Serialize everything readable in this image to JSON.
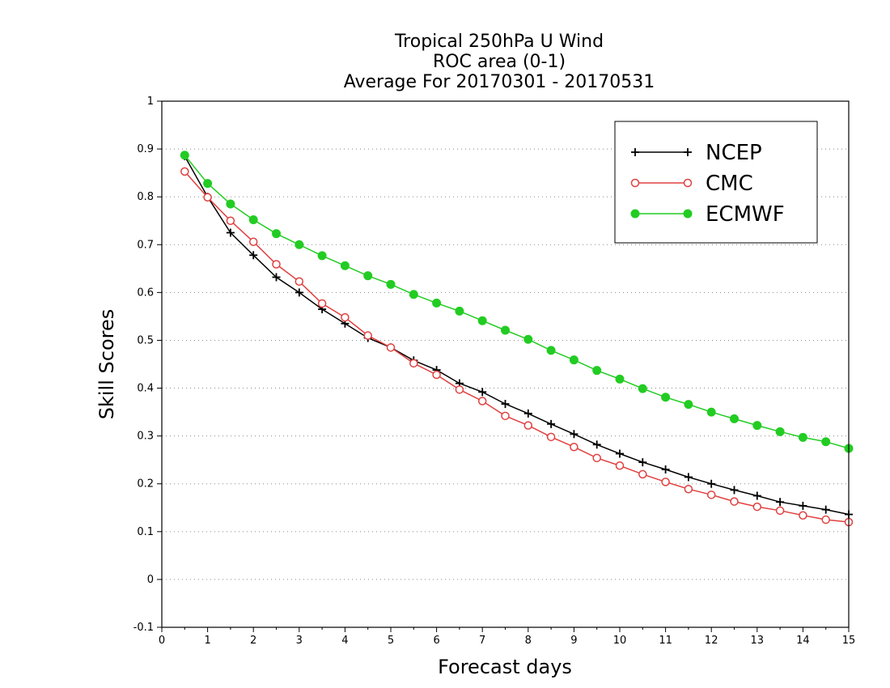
{
  "chart_data": {
    "type": "line",
    "title_lines": [
      "Tropical 250hPa U Wind",
      "ROC area (0-1)",
      "Average For 20170301 - 20170531"
    ],
    "xlabel": "Forecast days",
    "ylabel": "Skill Scores",
    "xlim": [
      0,
      15
    ],
    "ylim": [
      -0.1,
      1
    ],
    "x_ticks": [
      "0",
      "1",
      "2",
      "3",
      "4",
      "5",
      "6",
      "7",
      "8",
      "9",
      "10",
      "11",
      "12",
      "13",
      "14",
      "15"
    ],
    "y_ticks": [
      "-0.1",
      "0",
      "0.1",
      "0.2",
      "0.3",
      "0.4",
      "0.5",
      "0.6",
      "0.7",
      "0.8",
      "0.9",
      "1"
    ],
    "grid": "horizontal dotted",
    "legend_position": "top-right",
    "x": [
      0.5,
      1.0,
      1.5,
      2.0,
      2.5,
      3.0,
      3.5,
      4.0,
      4.5,
      5.0,
      5.5,
      6.0,
      6.5,
      7.0,
      7.5,
      8.0,
      8.5,
      9.0,
      9.5,
      10.0,
      10.5,
      11.0,
      11.5,
      12.0,
      12.5,
      13.0,
      13.5,
      14.0,
      14.5,
      15.0
    ],
    "series": [
      {
        "name": "NCEP",
        "color": "#000000",
        "marker": "plus",
        "values": [
          0.885,
          0.8,
          0.725,
          0.678,
          0.632,
          0.6,
          0.565,
          0.535,
          0.505,
          0.485,
          0.458,
          0.438,
          0.41,
          0.392,
          0.367,
          0.347,
          0.325,
          0.304,
          0.282,
          0.263,
          0.245,
          0.23,
          0.214,
          0.2,
          0.187,
          0.175,
          0.162,
          0.154,
          0.146,
          0.136
        ]
      },
      {
        "name": "CMC",
        "color": "#e04040",
        "marker": "open-circle",
        "values": [
          0.853,
          0.799,
          0.75,
          0.706,
          0.659,
          0.623,
          0.577,
          0.548,
          0.51,
          0.485,
          0.452,
          0.428,
          0.397,
          0.373,
          0.342,
          0.322,
          0.298,
          0.277,
          0.254,
          0.238,
          0.22,
          0.204,
          0.189,
          0.177,
          0.163,
          0.152,
          0.144,
          0.134,
          0.125,
          0.12
        ]
      },
      {
        "name": "ECMWF",
        "color": "#22cc22",
        "marker": "filled-circle",
        "values": [
          0.887,
          0.828,
          0.785,
          0.752,
          0.723,
          0.7,
          0.677,
          0.656,
          0.635,
          0.617,
          0.596,
          0.578,
          0.561,
          0.541,
          0.521,
          0.502,
          0.479,
          0.459,
          0.437,
          0.419,
          0.399,
          0.381,
          0.366,
          0.35,
          0.336,
          0.322,
          0.309,
          0.297,
          0.288,
          0.274
        ]
      }
    ]
  }
}
